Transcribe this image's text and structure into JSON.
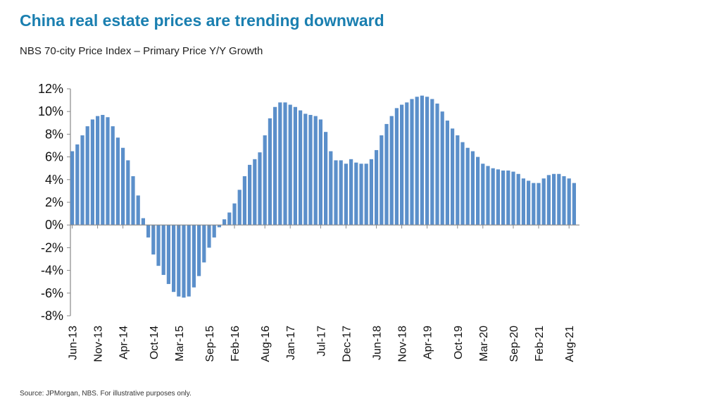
{
  "slide": {
    "title": "China real estate prices are trending downward",
    "subtitle": "NBS 70-city Price Index – Primary Price Y/Y Growth",
    "source": "Source: JPMorgan, NBS. For illustrative purposes only."
  },
  "chart_data": {
    "type": "bar",
    "title": "NBS 70-city Price Index – Primary Price Y/Y Growth",
    "xlabel": "",
    "ylabel": "",
    "unit": "%",
    "ylim": [
      -8,
      12
    ],
    "y_ticks": [
      12,
      10,
      8,
      6,
      4,
      2,
      0,
      -2,
      -4,
      -6,
      -8
    ],
    "y_tick_labels": [
      "12%",
      "10%",
      "8%",
      "6%",
      "4%",
      "2%",
      "0%",
      "-2%",
      "-4%",
      "-6%",
      "-8%"
    ],
    "x_tick_labels": [
      "Jun-13",
      "Nov-13",
      "Apr-14",
      "Oct-14",
      "Mar-15",
      "Sep-15",
      "Feb-16",
      "Aug-16",
      "Jan-17",
      "Jul-17",
      "Dec-17",
      "Jun-18",
      "Nov-18",
      "Apr-19",
      "Oct-19",
      "Mar-20",
      "Sep-20",
      "Feb-21",
      "Aug-21"
    ],
    "x_tick_indices": [
      0,
      5,
      10,
      16,
      21,
      27,
      32,
      38,
      43,
      49,
      54,
      60,
      65,
      70,
      76,
      81,
      87,
      92,
      98
    ],
    "bar_color": "#5b8fca",
    "series": [
      {
        "name": "Primary Price Y/Y Growth",
        "start": "Jun-13",
        "values": [
          6.5,
          7.1,
          7.9,
          8.7,
          9.3,
          9.6,
          9.7,
          9.5,
          8.7,
          7.7,
          6.8,
          5.7,
          4.3,
          2.6,
          0.6,
          -1.1,
          -2.6,
          -3.6,
          -4.4,
          -5.2,
          -5.9,
          -6.3,
          -6.4,
          -6.3,
          -5.5,
          -4.5,
          -3.3,
          -2.0,
          -1.1,
          -0.2,
          0.5,
          1.1,
          1.9,
          3.1,
          4.3,
          5.3,
          5.8,
          6.4,
          7.9,
          9.4,
          10.4,
          10.8,
          10.8,
          10.6,
          10.4,
          10.1,
          9.8,
          9.7,
          9.6,
          9.3,
          8.2,
          6.5,
          5.7,
          5.7,
          5.4,
          5.8,
          5.5,
          5.4,
          5.4,
          5.8,
          6.6,
          7.9,
          8.9,
          9.6,
          10.3,
          10.6,
          10.8,
          11.1,
          11.3,
          11.4,
          11.3,
          11.1,
          10.7,
          10.0,
          9.2,
          8.5,
          7.9,
          7.3,
          6.8,
          6.5,
          6.0,
          5.4,
          5.2,
          5.0,
          4.9,
          4.8,
          4.8,
          4.7,
          4.5,
          4.1,
          3.9,
          3.7,
          3.7,
          4.1,
          4.4,
          4.5,
          4.5,
          4.3,
          4.1,
          3.7
        ]
      }
    ]
  }
}
